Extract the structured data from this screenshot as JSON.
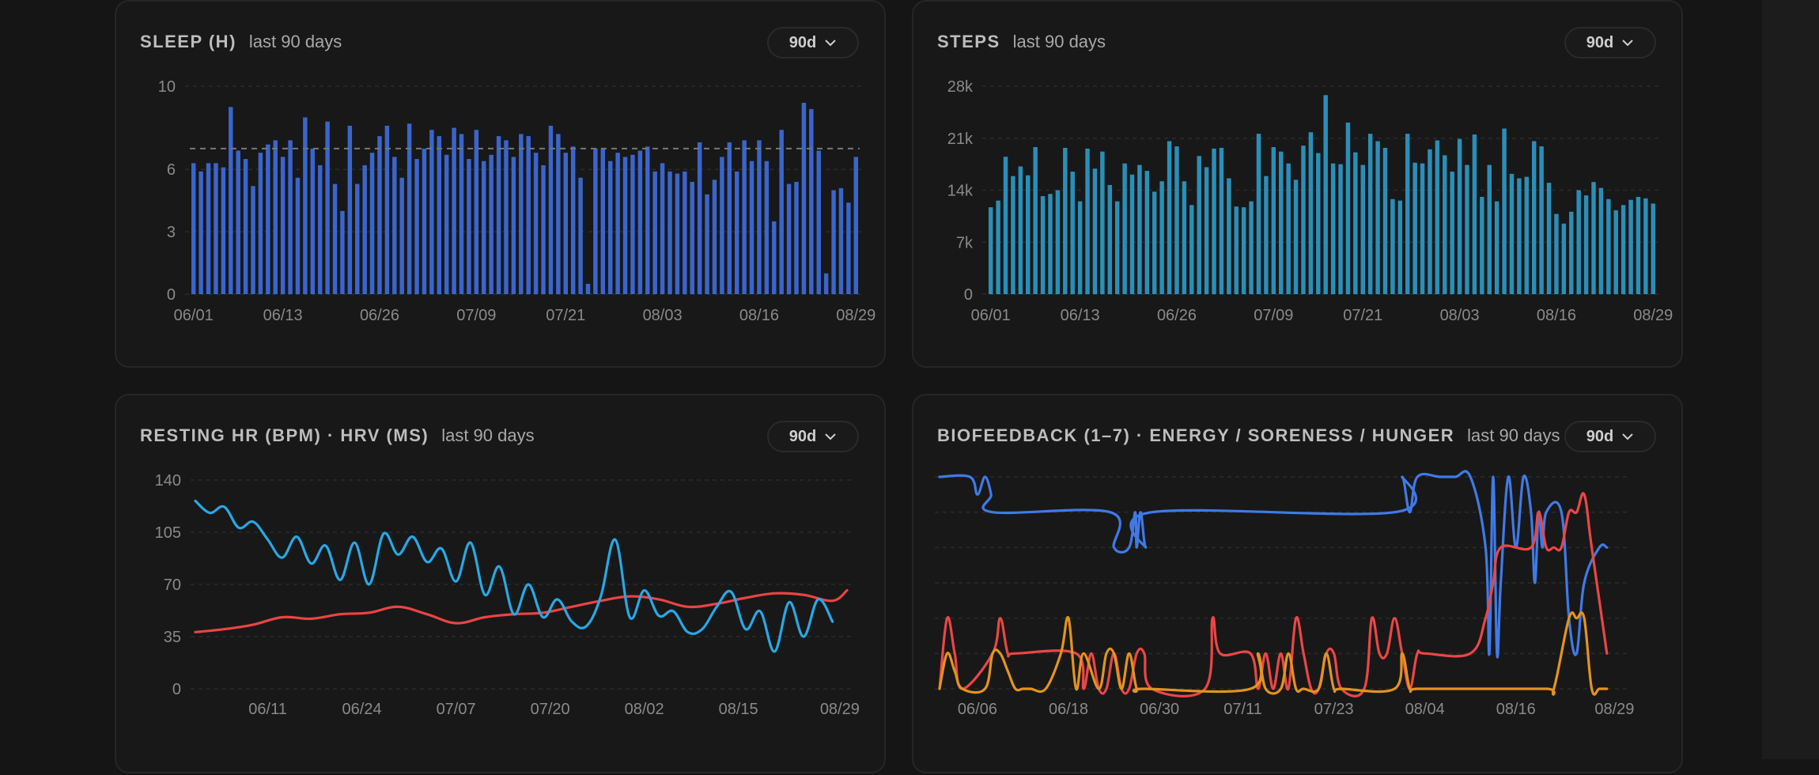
{
  "colors": {
    "sleep_bar": "#3a65cc",
    "steps_bar": "#2a8fb8",
    "rhr_line": "#ea4444",
    "hrv_line": "#28a8e6",
    "energy_line": "#3f7ae8",
    "soreness_line": "#ec4646",
    "hunger_line": "#e2941e"
  },
  "cards": {
    "sleep": {
      "title": "SLEEP (H)",
      "subtitle": "last 90 days",
      "range_label": "90d"
    },
    "steps": {
      "title": "STEPS",
      "subtitle": "last 90 days",
      "range_label": "90d"
    },
    "hr": {
      "title": "RESTING HR (BPM) · HRV (MS)",
      "subtitle": "last 90 days",
      "range_label": "90d"
    },
    "bio": {
      "title": "BIOFEEDBACK (1–7) · ENERGY / SORENESS / HUNGER",
      "subtitle": "last 90 days",
      "range_label": "90d"
    }
  },
  "chart_data": [
    {
      "id": "sleep",
      "type": "bar",
      "ylim": [
        0,
        10
      ],
      "yticks": [
        {
          "label": "10",
          "value": 10
        },
        {
          "label": "6",
          "value": 6
        },
        {
          "label": "3",
          "value": 3
        },
        {
          "label": "0",
          "value": 0
        }
      ],
      "xticks": [
        {
          "label": "06/01",
          "day": 0
        },
        {
          "label": "06/13",
          "day": 12
        },
        {
          "label": "06/26",
          "day": 25
        },
        {
          "label": "07/09",
          "day": 38
        },
        {
          "label": "07/21",
          "day": 50
        },
        {
          "label": "08/03",
          "day": 63
        },
        {
          "label": "08/16",
          "day": 76
        },
        {
          "label": "08/29",
          "day": 89
        }
      ],
      "reference_line": 7.0,
      "values": [
        6.3,
        5.9,
        6.3,
        6.3,
        6.1,
        9.0,
        6.9,
        6.5,
        5.2,
        6.8,
        7.2,
        7.4,
        6.6,
        7.4,
        5.6,
        8.5,
        7.0,
        6.2,
        8.3,
        5.3,
        4.0,
        8.1,
        5.3,
        6.2,
        6.8,
        7.6,
        8.1,
        6.6,
        5.6,
        8.2,
        6.5,
        7.0,
        7.9,
        7.6,
        6.7,
        8.0,
        7.7,
        6.5,
        7.9,
        6.4,
        6.7,
        7.6,
        7.4,
        6.6,
        7.7,
        7.6,
        6.8,
        6.2,
        8.1,
        7.7,
        6.8,
        7.1,
        5.6,
        0.5,
        7.0,
        7.0,
        6.4,
        6.8,
        6.6,
        6.7,
        6.9,
        7.1,
        5.9,
        6.3,
        5.9,
        5.8,
        5.9,
        5.4,
        7.3,
        4.8,
        5.5,
        6.6,
        7.3,
        5.9,
        7.4,
        6.4,
        7.4,
        6.4,
        3.5,
        7.9,
        5.3,
        5.4,
        9.2,
        8.9,
        6.9,
        1.0,
        5.0,
        5.1,
        4.4,
        6.6
      ]
    },
    {
      "id": "steps",
      "type": "bar",
      "ylim": [
        0,
        28000
      ],
      "yticks": [
        {
          "label": "28k",
          "value": 28000
        },
        {
          "label": "21k",
          "value": 21000
        },
        {
          "label": "14k",
          "value": 14000
        },
        {
          "label": "7k",
          "value": 7000
        },
        {
          "label": "0",
          "value": 0
        }
      ],
      "xticks": [
        {
          "label": "06/01",
          "day": 0
        },
        {
          "label": "06/13",
          "day": 12
        },
        {
          "label": "06/26",
          "day": 25
        },
        {
          "label": "07/09",
          "day": 38
        },
        {
          "label": "07/21",
          "day": 50
        },
        {
          "label": "08/03",
          "day": 63
        },
        {
          "label": "08/16",
          "day": 76
        },
        {
          "label": "08/29",
          "day": 89
        }
      ],
      "values": [
        11700,
        12600,
        18500,
        15900,
        17200,
        16000,
        19800,
        13200,
        13500,
        14000,
        19700,
        16500,
        12500,
        19600,
        16900,
        19200,
        14700,
        12500,
        17600,
        16100,
        17400,
        16600,
        13800,
        15200,
        20600,
        19900,
        15200,
        12000,
        18600,
        17100,
        19600,
        19700,
        15600,
        11800,
        11700,
        12500,
        21600,
        15900,
        19800,
        19200,
        17600,
        15400,
        20000,
        21800,
        19000,
        26800,
        17600,
        17500,
        23100,
        19100,
        17400,
        21600,
        20600,
        19700,
        12800,
        12600,
        21600,
        17700,
        17600,
        19500,
        20700,
        18700,
        16500,
        20900,
        17400,
        21500,
        13100,
        17400,
        12500,
        22300,
        16200,
        15600,
        15800,
        20600,
        19900,
        15000,
        10800,
        9500,
        11100,
        14000,
        13300,
        15100,
        14300,
        12800,
        11300,
        12000,
        12700,
        13100,
        12900,
        12200
      ]
    },
    {
      "id": "hr",
      "type": "line",
      "ylim": [
        0,
        140
      ],
      "yticks": [
        {
          "label": "140",
          "value": 140
        },
        {
          "label": "105",
          "value": 105
        },
        {
          "label": "70",
          "value": 70
        },
        {
          "label": "35",
          "value": 35
        },
        {
          "label": "0",
          "value": 0
        }
      ],
      "xticks": [
        {
          "label": "06/11",
          "day": 10
        },
        {
          "label": "06/24",
          "day": 23
        },
        {
          "label": "07/07",
          "day": 36
        },
        {
          "label": "07/20",
          "day": 49
        },
        {
          "label": "08/02",
          "day": 62
        },
        {
          "label": "08/15",
          "day": 75
        },
        {
          "label": "08/29",
          "day": 89
        }
      ],
      "series": [
        {
          "name": "RESTING HR",
          "color_key": "rhr_line",
          "x": [
            0,
            4,
            8,
            12,
            16,
            20,
            24,
            28,
            32,
            36,
            40,
            44,
            48,
            52,
            56,
            60,
            64,
            68,
            72,
            76,
            80,
            84,
            88,
            90
          ],
          "y": [
            38,
            40,
            43,
            48,
            47,
            50,
            51,
            55,
            50,
            44,
            48,
            50,
            51,
            55,
            59,
            62,
            60,
            55,
            57,
            61,
            64,
            63,
            59,
            66
          ]
        },
        {
          "name": "HRV",
          "color_key": "hrv_line",
          "x": [
            0,
            2,
            4,
            6,
            8,
            10,
            12,
            14,
            16,
            18,
            20,
            22,
            24,
            26,
            28,
            30,
            32,
            34,
            36,
            38,
            40,
            42,
            44,
            46,
            48,
            50,
            52,
            54,
            56,
            58,
            60,
            62,
            64,
            66,
            68,
            70,
            72,
            74,
            76,
            78,
            80,
            82,
            84,
            86,
            88
          ],
          "y": [
            126,
            118,
            122,
            108,
            112,
            100,
            88,
            102,
            84,
            96,
            73,
            98,
            70,
            104,
            90,
            102,
            85,
            94,
            72,
            98,
            63,
            82,
            50,
            70,
            48,
            60,
            45,
            42,
            62,
            100,
            48,
            66,
            49,
            52,
            38,
            40,
            55,
            65,
            40,
            52,
            25,
            58,
            35,
            60,
            45
          ]
        }
      ]
    },
    {
      "id": "bio",
      "type": "line",
      "ylim": [
        1,
        7
      ],
      "yticks": [],
      "xticks": [
        {
          "label": "06/06",
          "day": 5
        },
        {
          "label": "06/18",
          "day": 17
        },
        {
          "label": "06/30",
          "day": 29
        },
        {
          "label": "07/11",
          "day": 40
        },
        {
          "label": "07/23",
          "day": 52
        },
        {
          "label": "08/04",
          "day": 64
        },
        {
          "label": "08/16",
          "day": 76
        },
        {
          "label": "08/29",
          "day": 89
        }
      ],
      "series": [
        {
          "name": "ENERGY",
          "color_key": "energy_line",
          "x": [
            0,
            4,
            5,
            6,
            6.8,
            7,
            22.5,
            23,
            25,
            25.8,
            26,
            26.5,
            27.2,
            28,
            60,
            61,
            62,
            63,
            66,
            68,
            70,
            72,
            72.5,
            73,
            73.5,
            74,
            75,
            76,
            77,
            78,
            78.5,
            79,
            79.5,
            80,
            82,
            83,
            84,
            85,
            87,
            88
          ],
          "y": [
            7,
            7,
            6.5,
            7,
            6.5,
            6,
            6,
            5,
            5,
            6,
            5,
            6,
            5,
            6,
            6,
            7,
            6,
            7,
            7,
            7,
            7,
            5,
            2,
            7,
            2,
            4,
            7,
            5,
            7,
            6,
            4,
            6,
            5,
            6,
            6,
            3,
            2,
            4,
            5,
            5
          ]
        },
        {
          "name": "SORENESS",
          "color_key": "soreness_line",
          "x": [
            0,
            1,
            2,
            3,
            7,
            8,
            9,
            10,
            18,
            19,
            20,
            21,
            22,
            23,
            24,
            25,
            26,
            27,
            28,
            35,
            36,
            37,
            41,
            42,
            43,
            44,
            45,
            46,
            47,
            48,
            49,
            50,
            51,
            52,
            53,
            56,
            57,
            58,
            59,
            60,
            61,
            62,
            63,
            64,
            70,
            72,
            73,
            74,
            78,
            79,
            80,
            81,
            82,
            83,
            84,
            85,
            86,
            88
          ],
          "y": [
            1,
            3,
            2,
            1,
            2,
            3,
            2,
            2,
            2,
            1,
            2,
            1,
            1,
            2,
            1,
            1,
            2,
            2,
            1,
            1,
            3,
            2,
            2,
            1,
            2,
            1,
            2,
            1,
            3,
            2,
            1,
            1,
            2,
            2,
            1,
            1,
            3,
            2,
            2,
            3,
            2,
            1,
            2,
            2,
            2,
            3,
            4,
            5,
            5,
            6,
            5,
            5,
            5,
            6,
            6,
            6.5,
            5,
            2
          ]
        },
        {
          "name": "HUNGER",
          "color_key": "hunger_line",
          "x": [
            0,
            1,
            2,
            3,
            6,
            7,
            8,
            9,
            10,
            11,
            12,
            14,
            16,
            17,
            18,
            19,
            21,
            22,
            23,
            24,
            25,
            26,
            27,
            41,
            42,
            43,
            45,
            46,
            47,
            48,
            50,
            51,
            52,
            53,
            60,
            61,
            62,
            63,
            70,
            80,
            81,
            83,
            84,
            85,
            86,
            87,
            88
          ],
          "y": [
            1,
            2,
            1.5,
            1,
            1,
            2,
            2,
            1.5,
            1,
            1,
            1,
            1,
            2,
            3,
            1,
            2,
            1,
            2,
            2,
            1,
            2,
            1,
            1,
            1,
            2,
            1,
            1,
            2,
            1,
            1,
            1,
            2,
            1,
            1,
            1,
            2,
            1,
            1,
            1,
            1,
            1,
            3,
            3,
            3,
            1,
            1,
            1
          ]
        }
      ]
    }
  ]
}
